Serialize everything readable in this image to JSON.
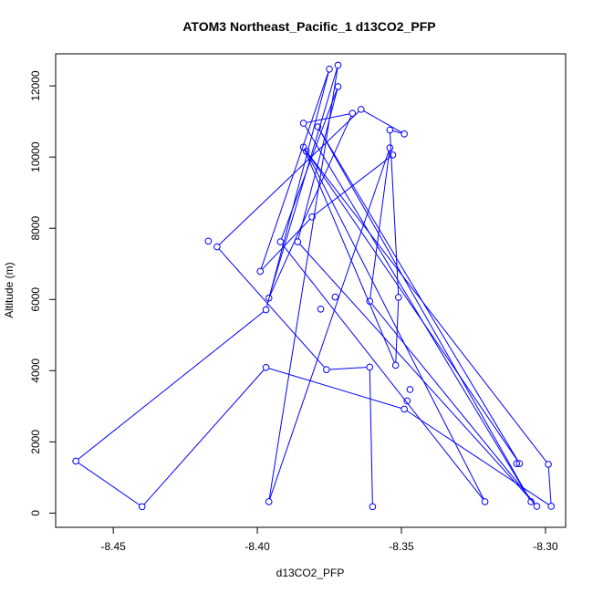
{
  "chart_data": {
    "type": "scatter",
    "title": "ATOM3 Northeast_Pacific_1 d13CO2_PFP",
    "xlabel": "d13CO2_PFP",
    "ylabel": "Altitude (m)",
    "xlim": [
      -8.47,
      -8.293
    ],
    "ylim": [
      -400,
      12900
    ],
    "xticks": [
      -8.45,
      -8.4,
      -8.35,
      -8.3
    ],
    "xtick_labels": [
      "-8.45",
      "-8.40",
      "-8.35",
      "-8.30"
    ],
    "yticks": [
      0,
      2000,
      4000,
      6000,
      8000,
      10000,
      12000
    ],
    "ytick_labels": [
      "0",
      "2000",
      "4000",
      "6000",
      "8000",
      "10000",
      "12000"
    ],
    "grid": false,
    "legend": "none",
    "point_style": "open-circle",
    "color": "#0000ff",
    "connected": true,
    "points": [
      {
        "x": -8.36,
        "y": 180
      },
      {
        "x": -8.361,
        "y": 4100
      },
      {
        "x": -8.376,
        "y": 4030
      },
      {
        "x": -8.414,
        "y": 7480
      },
      {
        "x": -8.364,
        "y": 11340
      },
      {
        "x": -8.349,
        "y": 10650
      },
      {
        "x": -8.354,
        "y": 10760
      },
      {
        "x": -8.351,
        "y": 6060
      },
      {
        "x": -8.352,
        "y": 4150
      },
      {
        "x": -8.384,
        "y": 10280
      },
      {
        "x": -8.309,
        "y": 1390
      },
      {
        "x": -8.379,
        "y": 10850
      },
      {
        "x": -8.305,
        "y": 320
      },
      {
        "x": -8.384,
        "y": 10950
      },
      {
        "x": -8.367,
        "y": 11230
      },
      {
        "x": -8.396,
        "y": 6040
      },
      {
        "x": -8.372,
        "y": 12580
      },
      {
        "x": -8.396,
        "y": 320
      },
      {
        "x": -8.354,
        "y": 10260
      },
      {
        "x": -8.361,
        "y": 5950
      },
      {
        "x": -8.303,
        "y": 190
      },
      {
        "x": -8.386,
        "y": 7620
      },
      {
        "x": -8.372,
        "y": 11980
      },
      {
        "x": -8.392,
        "y": 7620
      },
      {
        "x": -8.321,
        "y": 320
      },
      {
        "x": -8.383,
        "y": 10160
      },
      {
        "x": -8.299,
        "y": 1370
      },
      {
        "x": -8.298,
        "y": 190
      },
      {
        "x": -8.349,
        "y": 2920
      },
      {
        "x": -8.397,
        "y": 4090
      },
      {
        "x": -8.44,
        "y": 180
      },
      {
        "x": -8.463,
        "y": 1460
      },
      {
        "x": -8.397,
        "y": 5710
      },
      {
        "x": -8.375,
        "y": 12470
      },
      {
        "x": -8.399,
        "y": 6790
      },
      {
        "x": -8.381,
        "y": 8320
      },
      {
        "x": -8.353,
        "y": 10060
      }
    ],
    "extra_points": [
      {
        "x": -8.417,
        "y": 7640
      },
      {
        "x": -8.373,
        "y": 6070
      },
      {
        "x": -8.378,
        "y": 5730
      },
      {
        "x": -8.348,
        "y": 3150
      },
      {
        "x": -8.347,
        "y": 3470
      },
      {
        "x": -8.31,
        "y": 1390
      }
    ]
  }
}
